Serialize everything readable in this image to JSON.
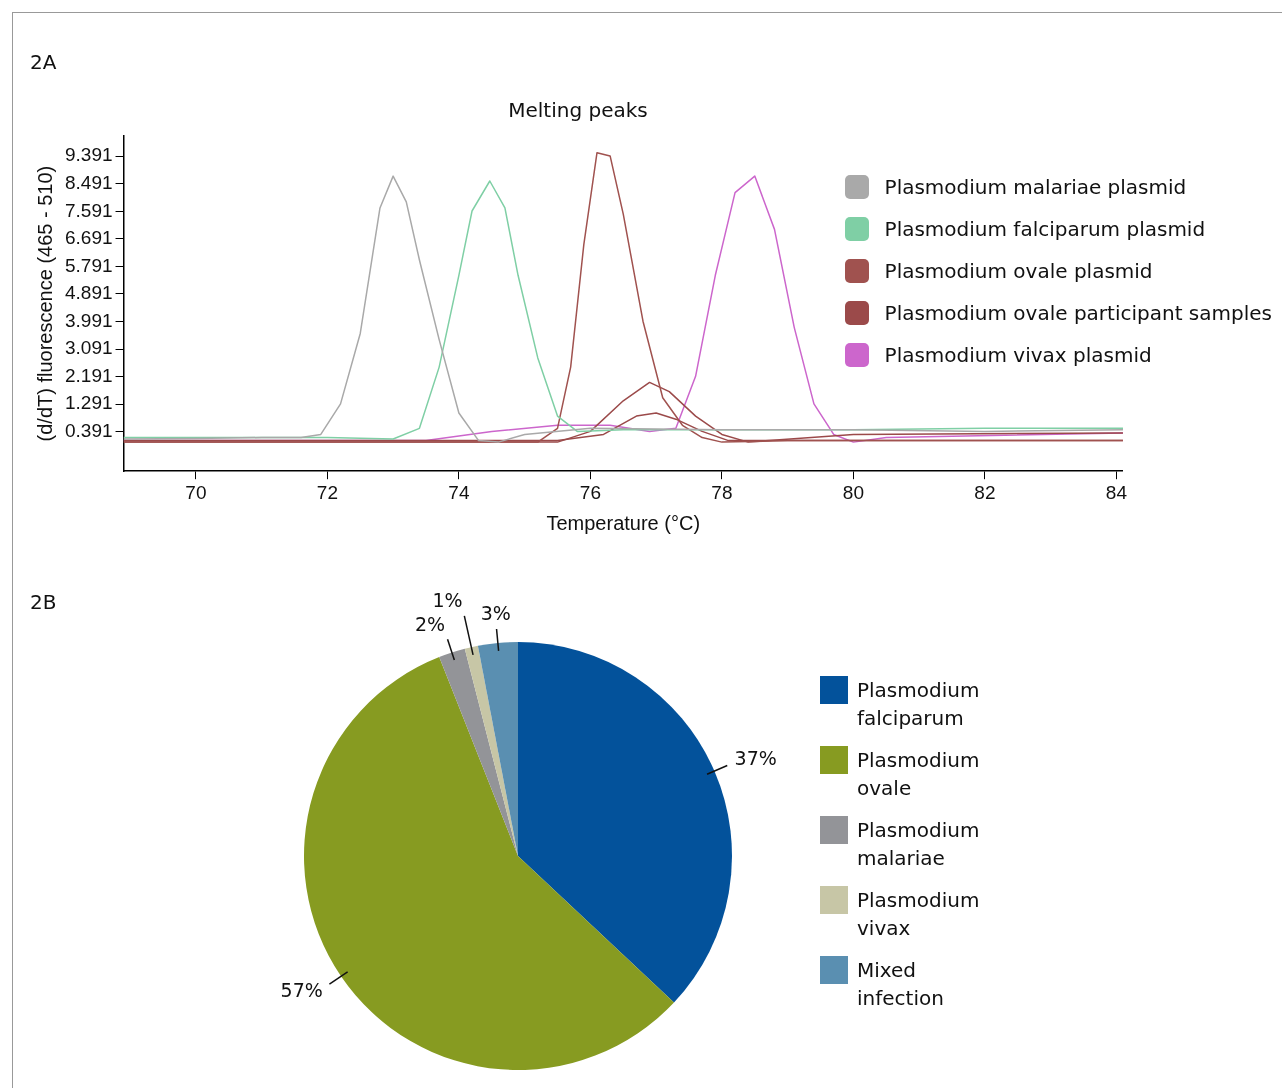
{
  "chart_data": [
    {
      "type": "line",
      "title": "Melting peaks",
      "xlabel": "Temperature (°C)",
      "ylabel": "(d/dT) fluorescence (465 - 510)",
      "annotations": [
        "2A"
      ],
      "legend": "top right",
      "xlim": [
        68.9,
        84.1
      ],
      "xticks": [
        70,
        72,
        74,
        76,
        78,
        80,
        82,
        84
      ],
      "ylim": [
        -0.9,
        10.05
      ],
      "yticks": [
        0.391,
        1.291,
        2.191,
        3.091,
        3.991,
        4.891,
        5.791,
        6.691,
        7.591,
        8.491,
        9.391
      ],
      "series": [
        {
          "name": "Plasmodium malariae plasmid",
          "color": "#a9a9a9",
          "x": [
            68.9,
            70,
            71,
            71.6,
            71.9,
            72.2,
            72.5,
            72.8,
            73.0,
            73.2,
            73.4,
            73.7,
            74.0,
            74.3,
            74.6,
            75,
            76,
            78,
            80,
            82,
            84.1
          ],
          "values": [
            0.15,
            0.17,
            0.2,
            0.2,
            0.3,
            1.3,
            3.6,
            7.7,
            8.74,
            7.9,
            6.0,
            3.4,
            1.0,
            0.1,
            0.05,
            0.3,
            0.5,
            0.45,
            0.45,
            0.4,
            0.45
          ]
        },
        {
          "name": "Plasmodium falciparum plasmid",
          "color": "#7fcfa5",
          "x": [
            68.9,
            71,
            72,
            73,
            73.4,
            73.7,
            74.0,
            74.2,
            74.47,
            74.7,
            74.9,
            75.2,
            75.5,
            75.8,
            76.5,
            78,
            80,
            82,
            84.1
          ],
          "values": [
            0.2,
            0.2,
            0.2,
            0.15,
            0.5,
            2.5,
            5.5,
            7.6,
            8.58,
            7.7,
            5.5,
            2.8,
            0.9,
            0.4,
            0.45,
            0.45,
            0.45,
            0.5,
            0.5
          ]
        },
        {
          "name": "Plasmodium ovale plasmid",
          "color": "#a0524f",
          "x": [
            68.9,
            74,
            75.2,
            75.5,
            75.7,
            75.9,
            76.1,
            76.3,
            76.5,
            76.8,
            77.1,
            77.4,
            77.7,
            78,
            79,
            80,
            84.1
          ],
          "values": [
            0.05,
            0.05,
            0.05,
            0.5,
            2.5,
            6.5,
            9.5,
            9.4,
            7.5,
            4.0,
            1.5,
            0.6,
            0.2,
            0.05,
            0.1,
            0.1,
            0.1
          ]
        },
        {
          "name": "Plasmodium ovale participant samples",
          "color": "#9b4a4a",
          "x": [
            68.9,
            75.5,
            76.0,
            76.5,
            76.9,
            77.2,
            77.6,
            78,
            78.4,
            80,
            84.1
          ],
          "values": [
            0.05,
            0.05,
            0.4,
            1.4,
            2.0,
            1.7,
            0.9,
            0.3,
            0.05,
            0.3,
            0.35
          ]
        },
        {
          "color": "#9b4a4a",
          "x": [
            68.9,
            75.5,
            76.2,
            76.7,
            77.0,
            77.3,
            77.7,
            78.1,
            80,
            84.1
          ],
          "values": [
            0.1,
            0.1,
            0.3,
            0.9,
            1.0,
            0.8,
            0.4,
            0.1,
            0.1,
            0.1
          ]
        },
        {
          "name": "Plasmodium vivax plasmid",
          "color": "#cc66cc",
          "x": [
            68.9,
            73.5,
            74.5,
            75.5,
            76.3,
            76.9,
            77.3,
            77.6,
            77.9,
            78.2,
            78.5,
            78.8,
            79.1,
            79.4,
            79.7,
            80,
            80.5,
            84.1
          ],
          "values": [
            0.1,
            0.1,
            0.4,
            0.6,
            0.6,
            0.4,
            0.5,
            2.2,
            5.5,
            8.2,
            8.74,
            7.0,
            3.8,
            1.3,
            0.3,
            0.05,
            0.2,
            0.35
          ]
        }
      ]
    },
    {
      "type": "pie",
      "annotations": [
        "2B"
      ],
      "legend": "right",
      "categories": [
        "Plasmodium falciparum",
        "Plasmodium ovale",
        "Plasmodium malariae",
        "Plasmodium vivax",
        "Mixed infection"
      ],
      "values": [
        37,
        57,
        2,
        1,
        3
      ],
      "value_labels": [
        "37%",
        "57%",
        "2%",
        "1%",
        "3%"
      ],
      "colors": [
        "#03529b",
        "#879b21",
        "#939498",
        "#c7c6a6",
        "#5a8fb1"
      ]
    }
  ]
}
